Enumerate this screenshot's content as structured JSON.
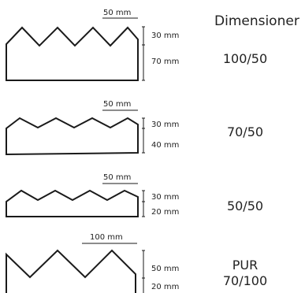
{
  "header": {
    "title": "Dimensioner"
  },
  "profiles": [
    {
      "width_label": "50 mm",
      "top_label": "30 mm",
      "bottom_label": "70 mm",
      "name_line1": "100/50",
      "name_line2": ""
    },
    {
      "width_label": "50 mm",
      "top_label": "30 mm",
      "bottom_label": "40 mm",
      "name_line1": "70/50",
      "name_line2": ""
    },
    {
      "width_label": "50 mm",
      "top_label": "30 mm",
      "bottom_label": "20 mm",
      "name_line1": "50/50",
      "name_line2": ""
    },
    {
      "width_label": "100 mm",
      "top_label": "50 mm",
      "bottom_label": "20 mm",
      "name_line1": "PUR",
      "name_line2": "70/100"
    }
  ],
  "colors": {
    "stroke": "#1a1a1a",
    "text": "#222222"
  }
}
